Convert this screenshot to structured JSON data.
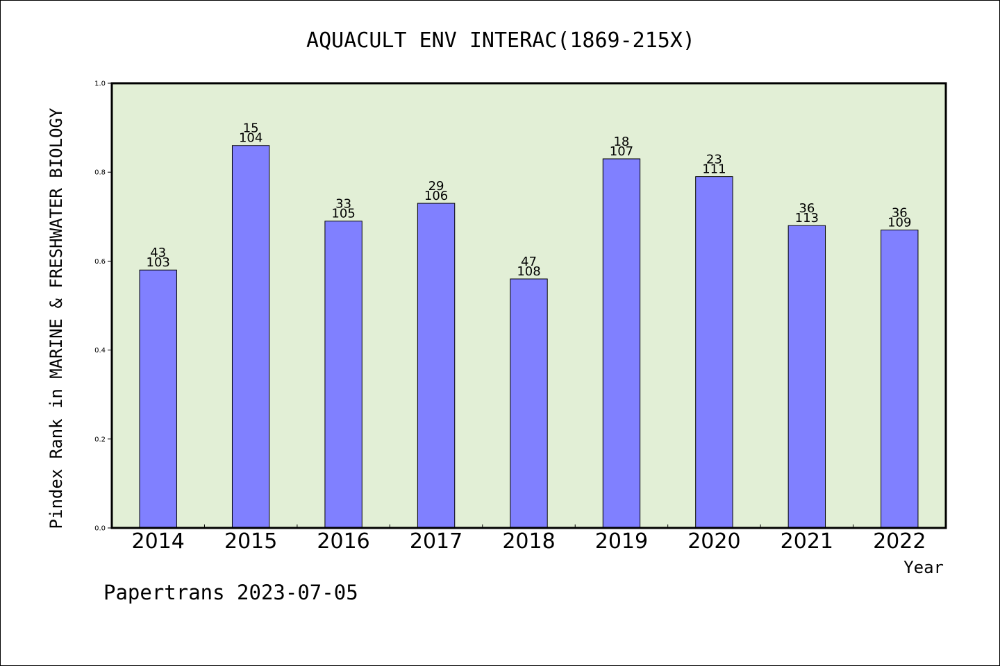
{
  "chart_data": {
    "type": "bar",
    "title": "AQUACULT ENV INTERAC(1869-215X)",
    "xlabel": "Year",
    "ylabel": "Pindex Rank in MARINE & FRESHWATER BIOLOGY",
    "categories": [
      "2014",
      "2015",
      "2016",
      "2017",
      "2018",
      "2019",
      "2020",
      "2021",
      "2022"
    ],
    "values": [
      0.58,
      0.86,
      0.69,
      0.73,
      0.56,
      0.83,
      0.79,
      0.68,
      0.67
    ],
    "rank_labels": [
      "43",
      "15",
      "33",
      "29",
      "47",
      "18",
      "23",
      "36",
      "36"
    ],
    "total_labels": [
      "103",
      "104",
      "105",
      "106",
      "108",
      "107",
      "111",
      "113",
      "109"
    ],
    "ylim": [
      0,
      1.0
    ],
    "yticks": [
      "0.0",
      "0.2",
      "0.4",
      "0.6",
      "0.8",
      "1.0"
    ],
    "grid": false,
    "colors": {
      "bar_fill": "#8080ff",
      "plot_background": "#e2efd6",
      "axes": "#000000"
    }
  },
  "footer": {
    "text": "Papertrans 2023-07-05"
  }
}
